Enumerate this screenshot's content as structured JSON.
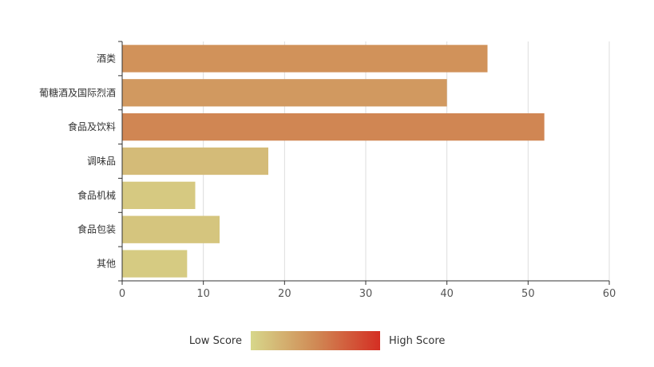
{
  "chart_data": {
    "type": "bar",
    "orientation": "horizontal",
    "categories": [
      "酒类",
      "葡糖酒及国际烈酒",
      "食品及饮料",
      "调味品",
      "食品机械",
      "食品包装",
      "其他"
    ],
    "values": [
      45,
      40,
      52,
      18,
      9,
      12,
      8
    ],
    "xlim": [
      0,
      60
    ],
    "x_ticks": [
      0,
      10,
      20,
      30,
      40,
      50,
      60
    ],
    "grid": "vertical",
    "visual_map": {
      "min": 0,
      "max": 100,
      "low_label": "Low Score",
      "high_label": "High Score",
      "colors": [
        "#d7d78b",
        "#d08a55",
        "#d42e23"
      ],
      "placement": "bottom-center"
    }
  }
}
